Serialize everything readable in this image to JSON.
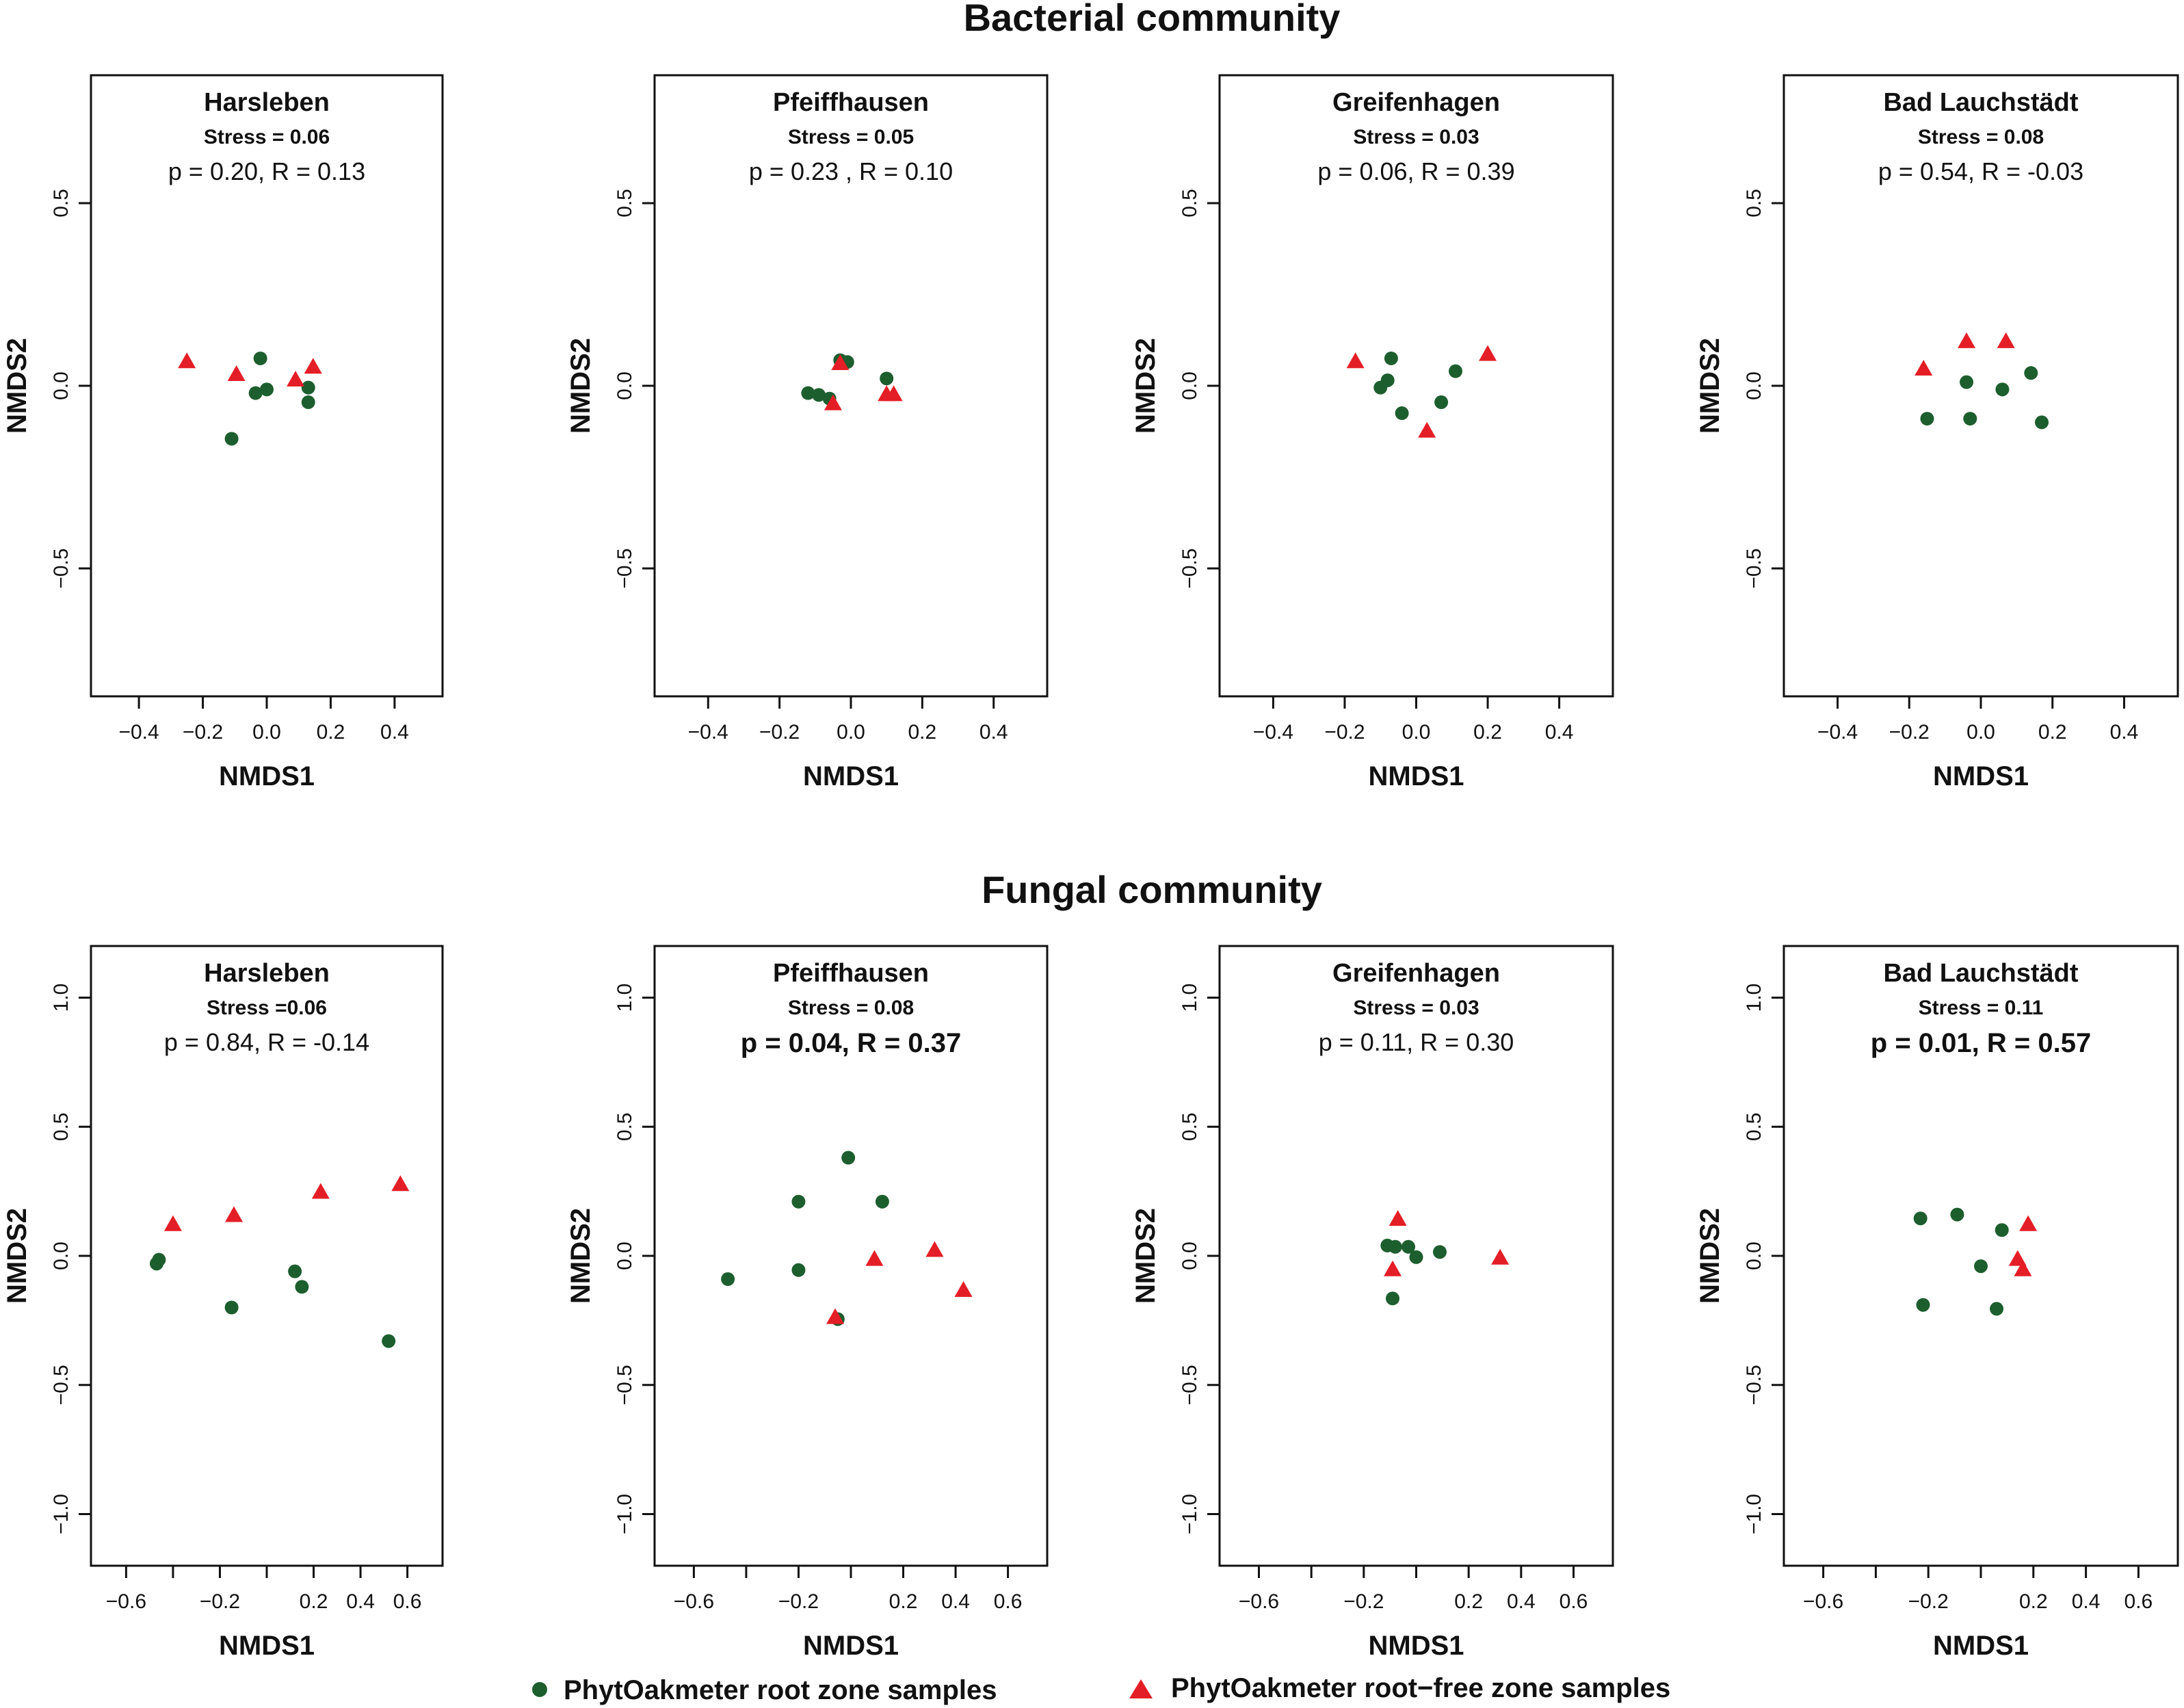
{
  "colors": {
    "root_zone": "#1d5e2e",
    "root_free": "#e41e26",
    "axes": "#111111"
  },
  "legend": {
    "root_zone": {
      "label": "PhytOakmeter root zone samples",
      "marker": "circle"
    },
    "root_free": {
      "label": "PhytOakmeter root−free zone samples",
      "marker": "triangle"
    }
  },
  "chart_data": [
    {
      "type": "scatter",
      "group": "Bacterial community",
      "title": "Harsleben",
      "stress": "Stress = 0.06",
      "stat": "p = 0.20, R = 0.13",
      "stat_bold": false,
      "xlabel": "NMDS1",
      "ylabel": "NMDS2",
      "xlim": [
        -0.55,
        0.55
      ],
      "ylim": [
        -0.85,
        0.85
      ],
      "xticks": [
        "−0.4",
        "−0.2",
        "0.0",
        "0.2",
        "0.4"
      ],
      "xtick_values": [
        -0.4,
        -0.2,
        0.0,
        0.2,
        0.4
      ],
      "yticks": [
        "−0.5",
        "0.0",
        "0.5"
      ],
      "ytick_values": [
        -0.5,
        0.0,
        0.5
      ],
      "series": [
        {
          "name": "root_zone",
          "points": [
            [
              -0.02,
              0.075
            ],
            [
              -0.035,
              -0.02
            ],
            [
              0.0,
              -0.01
            ],
            [
              0.13,
              -0.045
            ],
            [
              0.13,
              -0.005
            ],
            [
              -0.11,
              -0.145
            ]
          ]
        },
        {
          "name": "root_free",
          "points": [
            [
              -0.25,
              0.065
            ],
            [
              -0.095,
              0.03
            ],
            [
              0.09,
              0.015
            ],
            [
              0.145,
              0.05
            ]
          ]
        }
      ]
    },
    {
      "type": "scatter",
      "group": "Bacterial community",
      "title": "Pfeiffhausen",
      "stress": "Stress = 0.05",
      "stat": "p = 0.23 , R = 0.10",
      "stat_bold": false,
      "xlabel": "NMDS1",
      "ylabel": "NMDS2",
      "xlim": [
        -0.55,
        0.55
      ],
      "ylim": [
        -0.85,
        0.85
      ],
      "xticks": [
        "−0.4",
        "−0.2",
        "0.0",
        "0.2",
        "0.4"
      ],
      "xtick_values": [
        -0.4,
        -0.2,
        0.0,
        0.2,
        0.4
      ],
      "yticks": [
        "−0.5",
        "0.0",
        "0.5"
      ],
      "ytick_values": [
        -0.5,
        0.0,
        0.5
      ],
      "series": [
        {
          "name": "root_zone",
          "points": [
            [
              -0.12,
              -0.02
            ],
            [
              -0.09,
              -0.025
            ],
            [
              -0.06,
              -0.035
            ],
            [
              -0.03,
              0.07
            ],
            [
              -0.01,
              0.065
            ],
            [
              0.1,
              0.02
            ]
          ]
        },
        {
          "name": "root_free",
          "points": [
            [
              -0.05,
              -0.05
            ],
            [
              -0.03,
              0.06
            ],
            [
              0.1,
              -0.025
            ],
            [
              0.12,
              -0.025
            ]
          ]
        }
      ]
    },
    {
      "type": "scatter",
      "group": "Bacterial community",
      "title": "Greifenhagen",
      "stress": "Stress = 0.03",
      "stat": "p = 0.06, R = 0.39",
      "stat_bold": false,
      "xlabel": "NMDS1",
      "ylabel": "NMDS2",
      "xlim": [
        -0.55,
        0.55
      ],
      "ylim": [
        -0.85,
        0.85
      ],
      "xticks": [
        "−0.4",
        "−0.2",
        "0.0",
        "0.2",
        "0.4"
      ],
      "xtick_values": [
        -0.4,
        -0.2,
        0.0,
        0.2,
        0.4
      ],
      "yticks": [
        "−0.5",
        "0.0",
        "0.5"
      ],
      "ytick_values": [
        -0.5,
        0.0,
        0.5
      ],
      "series": [
        {
          "name": "root_zone",
          "points": [
            [
              -0.1,
              -0.005
            ],
            [
              -0.08,
              0.015
            ],
            [
              -0.07,
              0.075
            ],
            [
              -0.04,
              -0.075
            ],
            [
              0.07,
              -0.045
            ],
            [
              0.11,
              0.04
            ]
          ]
        },
        {
          "name": "root_free",
          "points": [
            [
              -0.17,
              0.065
            ],
            [
              0.03,
              -0.125
            ],
            [
              0.2,
              0.085
            ]
          ]
        }
      ]
    },
    {
      "type": "scatter",
      "group": "Bacterial community",
      "title": "Bad Lauchstädt",
      "stress": "Stress = 0.08",
      "stat": "p = 0.54, R = -0.03",
      "stat_bold": false,
      "xlabel": "NMDS1",
      "ylabel": "NMDS2",
      "xlim": [
        -0.55,
        0.55
      ],
      "ylim": [
        -0.85,
        0.85
      ],
      "xticks": [
        "−0.4",
        "−0.2",
        "0.0",
        "0.2",
        "0.4"
      ],
      "xtick_values": [
        -0.4,
        -0.2,
        0.0,
        0.2,
        0.4
      ],
      "yticks": [
        "−0.5",
        "0.0",
        "0.5"
      ],
      "ytick_values": [
        -0.5,
        0.0,
        0.5
      ],
      "series": [
        {
          "name": "root_zone",
          "points": [
            [
              -0.15,
              -0.09
            ],
            [
              -0.04,
              0.01
            ],
            [
              -0.03,
              -0.09
            ],
            [
              0.06,
              -0.01
            ],
            [
              0.14,
              0.035
            ],
            [
              0.17,
              -0.1
            ]
          ]
        },
        {
          "name": "root_free",
          "points": [
            [
              -0.16,
              0.045
            ],
            [
              -0.04,
              0.12
            ],
            [
              0.07,
              0.12
            ]
          ]
        }
      ]
    },
    {
      "type": "scatter",
      "group": "Fungal community",
      "title": "Harsleben",
      "stress": "Stress =0.06",
      "stat": "p = 0.84, R = -0.14",
      "stat_bold": false,
      "xlabel": "NMDS1",
      "ylabel": "NMDS2",
      "xlim": [
        -0.75,
        0.75
      ],
      "ylim": [
        -1.2,
        1.2
      ],
      "xticks": [
        "−0.6",
        "−0.2",
        "0.2",
        "0.4",
        "0.6"
      ],
      "xtick_values": [
        -0.6,
        -0.2,
        0.2,
        0.4,
        0.6
      ],
      "all_xtick_values": [
        -0.6,
        -0.4,
        -0.2,
        0.0,
        0.2,
        0.4,
        0.6
      ],
      "yticks": [
        "−1.0",
        "−0.5",
        "0.0",
        "0.5",
        "1.0"
      ],
      "ytick_values": [
        -1.0,
        -0.5,
        0.0,
        0.5,
        1.0
      ],
      "series": [
        {
          "name": "root_zone",
          "points": [
            [
              -0.47,
              -0.03
            ],
            [
              -0.46,
              -0.015
            ],
            [
              -0.15,
              -0.2
            ],
            [
              0.12,
              -0.06
            ],
            [
              0.15,
              -0.12
            ],
            [
              0.52,
              -0.33
            ]
          ]
        },
        {
          "name": "root_free",
          "points": [
            [
              -0.4,
              0.12
            ],
            [
              -0.14,
              0.155
            ],
            [
              0.23,
              0.245
            ],
            [
              0.57,
              0.275
            ]
          ]
        }
      ]
    },
    {
      "type": "scatter",
      "group": "Fungal community",
      "title": "Pfeiffhausen",
      "stress": "Stress = 0.08",
      "stat": "p = 0.04, R = 0.37",
      "stat_bold": true,
      "xlabel": "NMDS1",
      "ylabel": "NMDS2",
      "xlim": [
        -0.75,
        0.75
      ],
      "ylim": [
        -1.2,
        1.2
      ],
      "xticks": [
        "−0.6",
        "−0.2",
        "0.2",
        "0.4",
        "0.6"
      ],
      "xtick_values": [
        -0.6,
        -0.2,
        0.2,
        0.4,
        0.6
      ],
      "all_xtick_values": [
        -0.6,
        -0.4,
        -0.2,
        0.0,
        0.2,
        0.4,
        0.6
      ],
      "yticks": [
        "−1.0",
        "−0.5",
        "0.0",
        "0.5",
        "1.0"
      ],
      "ytick_values": [
        -1.0,
        -0.5,
        0.0,
        0.5,
        1.0
      ],
      "series": [
        {
          "name": "root_zone",
          "points": [
            [
              -0.47,
              -0.09
            ],
            [
              -0.2,
              0.21
            ],
            [
              -0.2,
              -0.055
            ],
            [
              -0.05,
              -0.245
            ],
            [
              -0.01,
              0.38
            ],
            [
              0.12,
              0.21
            ]
          ]
        },
        {
          "name": "root_free",
          "points": [
            [
              -0.06,
              -0.24
            ],
            [
              0.09,
              -0.015
            ],
            [
              0.32,
              0.02
            ],
            [
              0.43,
              -0.135
            ]
          ]
        }
      ]
    },
    {
      "type": "scatter",
      "group": "Fungal community",
      "title": "Greifenhagen",
      "stress": "Stress = 0.03",
      "stat": "p = 0.11, R = 0.30",
      "stat_bold": false,
      "xlabel": "NMDS1",
      "ylabel": "NMDS2",
      "xlim": [
        -0.75,
        0.75
      ],
      "ylim": [
        -1.2,
        1.2
      ],
      "xticks": [
        "−0.6",
        "−0.2",
        "0.2",
        "0.4",
        "0.6"
      ],
      "xtick_values": [
        -0.6,
        -0.2,
        0.2,
        0.4,
        0.6
      ],
      "all_xtick_values": [
        -0.6,
        -0.4,
        -0.2,
        0.0,
        0.2,
        0.4,
        0.6
      ],
      "yticks": [
        "−1.0",
        "−0.5",
        "0.0",
        "0.5",
        "1.0"
      ],
      "ytick_values": [
        -1.0,
        -0.5,
        0.0,
        0.5,
        1.0
      ],
      "series": [
        {
          "name": "root_zone",
          "points": [
            [
              -0.11,
              0.04
            ],
            [
              -0.08,
              0.035
            ],
            [
              -0.03,
              0.035
            ],
            [
              0.0,
              -0.005
            ],
            [
              0.09,
              0.015
            ],
            [
              -0.09,
              -0.165
            ]
          ]
        },
        {
          "name": "root_free",
          "points": [
            [
              -0.07,
              0.14
            ],
            [
              -0.09,
              -0.055
            ],
            [
              0.32,
              -0.01
            ]
          ]
        }
      ]
    },
    {
      "type": "scatter",
      "group": "Fungal community",
      "title": "Bad Lauchstädt",
      "stress": "Stress = 0.11",
      "stat": "p = 0.01, R = 0.57",
      "stat_bold": true,
      "xlabel": "NMDS1",
      "ylabel": "NMDS2",
      "xlim": [
        -0.75,
        0.75
      ],
      "ylim": [
        -1.2,
        1.2
      ],
      "xticks": [
        "−0.6",
        "−0.2",
        "0.2",
        "0.4",
        "0.6"
      ],
      "xtick_values": [
        -0.6,
        -0.2,
        0.2,
        0.4,
        0.6
      ],
      "all_xtick_values": [
        -0.6,
        -0.4,
        -0.2,
        0.0,
        0.2,
        0.4,
        0.6
      ],
      "yticks": [
        "−1.0",
        "−0.5",
        "0.0",
        "0.5",
        "1.0"
      ],
      "ytick_values": [
        -1.0,
        -0.5,
        0.0,
        0.5,
        1.0
      ],
      "series": [
        {
          "name": "root_zone",
          "points": [
            [
              -0.23,
              0.145
            ],
            [
              -0.09,
              0.16
            ],
            [
              0.0,
              -0.04
            ],
            [
              0.08,
              0.1
            ],
            [
              0.06,
              -0.205
            ],
            [
              -0.22,
              -0.19
            ]
          ]
        },
        {
          "name": "root_free",
          "points": [
            [
              0.18,
              0.12
            ],
            [
              0.14,
              -0.015
            ],
            [
              0.16,
              -0.055
            ]
          ]
        }
      ]
    }
  ],
  "rows": [
    {
      "title": "Bacterial community"
    },
    {
      "title": "Fungal community"
    }
  ]
}
